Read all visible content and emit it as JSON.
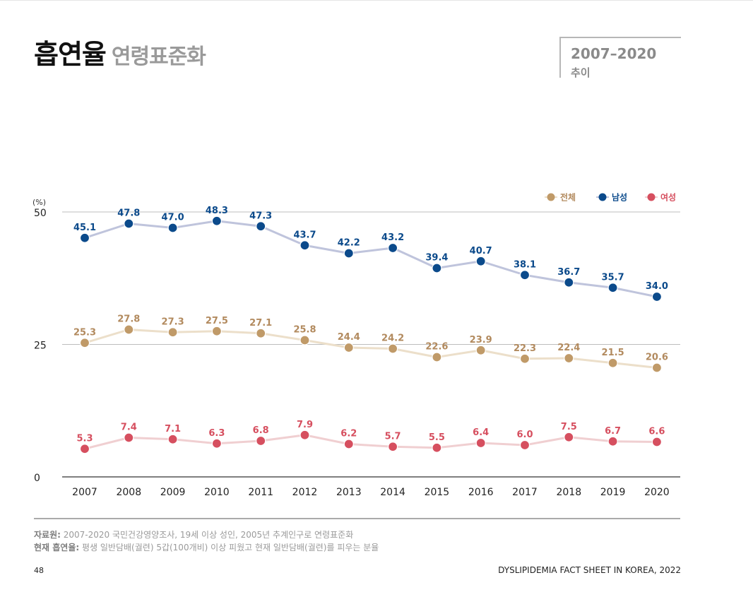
{
  "page": {
    "title_main": "흡연율",
    "title_sub": "연령표준화",
    "period": "2007–2020",
    "period_word": "추이",
    "source_label": "자료원:",
    "source_text": " 2007-2020 국민건강영양조사, 19세 이상 성인, 2005년 추계인구로 연령표준화",
    "definition_label": "현재 흡연율:",
    "definition_text": " 평생 일반담배(궐련) 5갑(100개비) 이상 피웠고 현재 일반담배(궐련)를 피우는 분율",
    "page_number": "48",
    "footer_brand": "DYSLIPIDEMIA FACT SHEET IN KOREA, 2022"
  },
  "chart_data": {
    "type": "line",
    "unit_label": "(%)",
    "ylim": [
      0,
      50
    ],
    "yticks": [
      0,
      25,
      50
    ],
    "categories": [
      "2007",
      "2008",
      "2009",
      "2010",
      "2011",
      "2012",
      "2013",
      "2014",
      "2015",
      "2016",
      "2017",
      "2018",
      "2019",
      "2020"
    ],
    "legend_position": "top-right",
    "grid": true,
    "series": [
      {
        "name": "전체",
        "dot_color": "#c09a68",
        "line_color": "#ecdfca",
        "label_color": "#b28a5e",
        "values": [
          25.3,
          27.8,
          27.3,
          27.5,
          27.1,
          25.8,
          24.4,
          24.2,
          22.6,
          23.9,
          22.3,
          22.4,
          21.5,
          20.6
        ]
      },
      {
        "name": "남성",
        "dot_color": "#0b4a8b",
        "line_color": "#bfc4dc",
        "label_color": "#0b4a8b",
        "values": [
          45.1,
          47.8,
          47.0,
          48.3,
          47.3,
          43.7,
          42.2,
          43.2,
          39.4,
          40.7,
          38.1,
          36.7,
          35.7,
          34.0
        ]
      },
      {
        "name": "여성",
        "dot_color": "#d64f5f",
        "line_color": "#f0cfd1",
        "label_color": "#d64f5f",
        "values": [
          5.3,
          7.4,
          7.1,
          6.3,
          6.8,
          7.9,
          6.2,
          5.7,
          5.5,
          6.4,
          6.0,
          7.5,
          6.7,
          6.6
        ]
      }
    ]
  }
}
